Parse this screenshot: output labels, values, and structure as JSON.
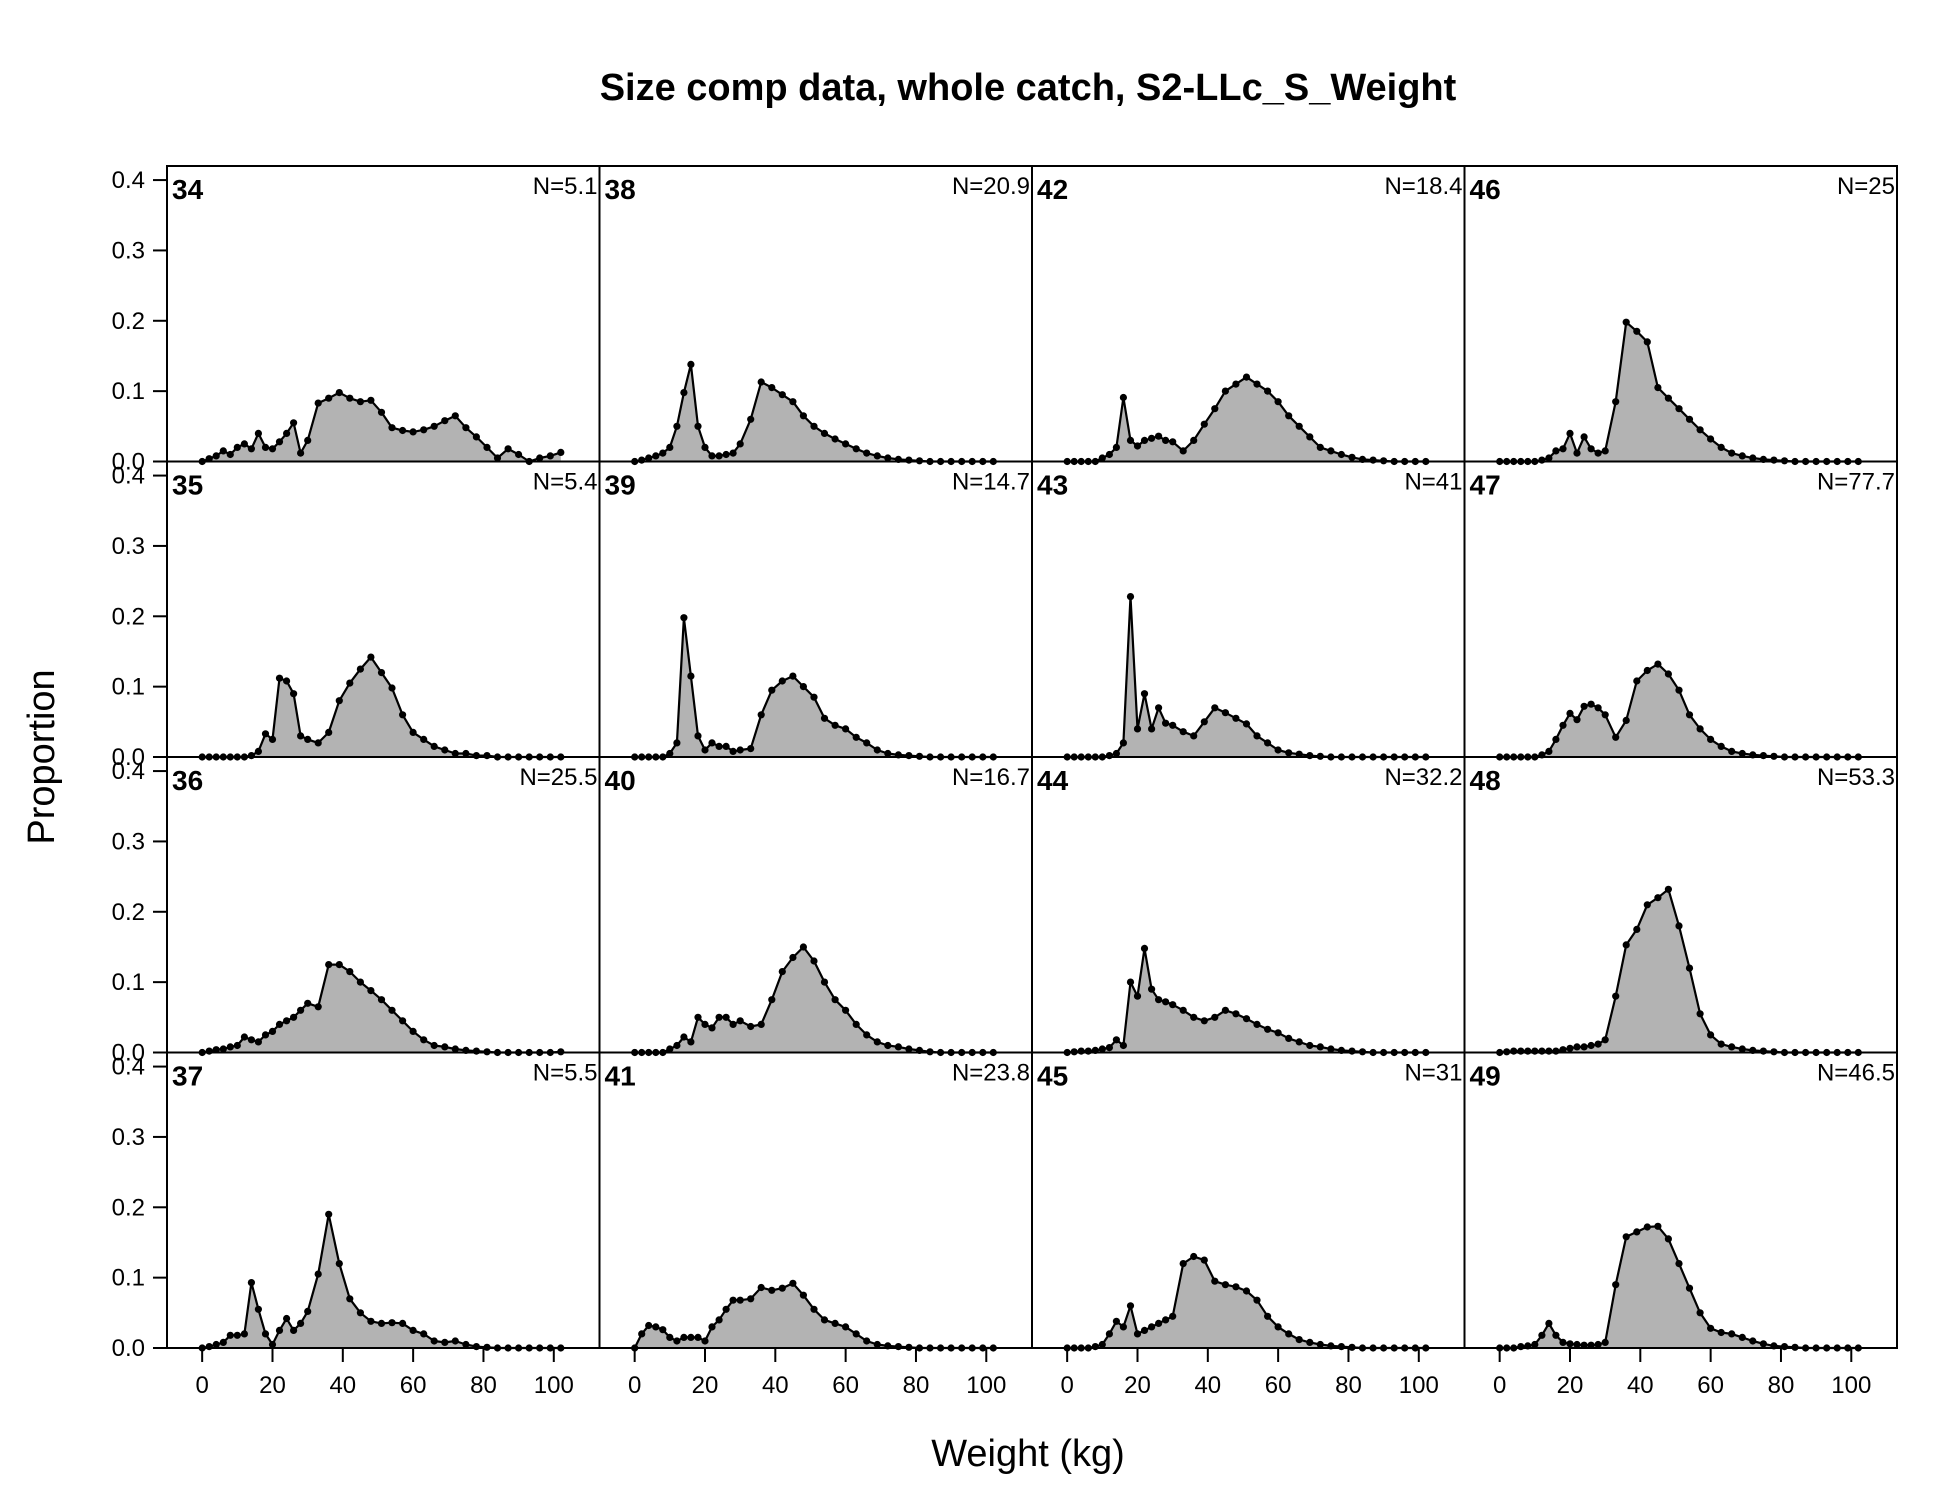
{
  "chart_data": {
    "type": "area",
    "title": "Size comp data, whole catch, S2-LLc_S_Weight",
    "xlabel": "Weight (kg)",
    "ylabel": "Proportion",
    "xlim": [
      -10,
      113
    ],
    "ylim": [
      0,
      0.42
    ],
    "x_ticks": [
      0,
      20,
      40,
      60,
      80,
      100
    ],
    "x_tick_labels": [
      "0",
      "20",
      "40",
      "60",
      "80",
      "100"
    ],
    "y_ticks": [
      0,
      0.1,
      0.2,
      0.3,
      0.4
    ],
    "y_tick_labels": [
      "0.0",
      "0.1",
      "0.2",
      "0.3",
      "0.4"
    ],
    "layout": {
      "columns": 4,
      "rows": 4,
      "order": "column-major"
    },
    "fill_color": "#b3b3b3",
    "line_color": "#000000",
    "x": [
      0,
      2,
      4,
      6,
      8,
      10,
      12,
      14,
      16,
      18,
      20,
      22,
      24,
      26,
      28,
      30,
      33,
      36,
      39,
      42,
      45,
      48,
      51,
      54,
      57,
      60,
      63,
      66,
      69,
      72,
      75,
      78,
      81,
      84,
      87,
      90,
      93,
      96,
      99,
      102
    ],
    "panels": [
      {
        "label": "34",
        "n": "N=5.1",
        "values": [
          0,
          0.004,
          0.008,
          0.015,
          0.01,
          0.02,
          0.025,
          0.018,
          0.04,
          0.02,
          0.018,
          0.028,
          0.04,
          0.055,
          0.012,
          0.03,
          0.083,
          0.09,
          0.098,
          0.09,
          0.085,
          0.087,
          0.07,
          0.048,
          0.044,
          0.042,
          0.045,
          0.05,
          0.058,
          0.065,
          0.048,
          0.035,
          0.02,
          0.005,
          0.018,
          0.01,
          0,
          0.005,
          0.008,
          0.013
        ]
      },
      {
        "label": "35",
        "n": "N=5.4",
        "values": [
          0,
          0,
          0,
          0,
          0,
          0,
          0,
          0.002,
          0.008,
          0.033,
          0.025,
          0.112,
          0.108,
          0.09,
          0.03,
          0.025,
          0.02,
          0.035,
          0.08,
          0.105,
          0.125,
          0.142,
          0.12,
          0.098,
          0.06,
          0.035,
          0.025,
          0.015,
          0.01,
          0.005,
          0.005,
          0.002,
          0.002,
          0,
          0,
          0,
          0,
          0,
          0,
          0
        ]
      },
      {
        "label": "36",
        "n": "N=25.5",
        "values": [
          0,
          0.002,
          0.004,
          0.005,
          0.008,
          0.01,
          0.022,
          0.018,
          0.015,
          0.025,
          0.03,
          0.04,
          0.045,
          0.05,
          0.06,
          0.07,
          0.065,
          0.125,
          0.125,
          0.115,
          0.1,
          0.088,
          0.075,
          0.06,
          0.045,
          0.03,
          0.018,
          0.01,
          0.008,
          0.005,
          0.003,
          0.002,
          0.001,
          0,
          0,
          0,
          0,
          0,
          0,
          0.001
        ]
      },
      {
        "label": "37",
        "n": "N=5.5",
        "values": [
          0,
          0.002,
          0.005,
          0.008,
          0.018,
          0.018,
          0.02,
          0.093,
          0.055,
          0.02,
          0.005,
          0.025,
          0.042,
          0.025,
          0.035,
          0.052,
          0.105,
          0.19,
          0.12,
          0.07,
          0.05,
          0.038,
          0.035,
          0.036,
          0.035,
          0.025,
          0.02,
          0.01,
          0.008,
          0.01,
          0.005,
          0.002,
          0.001,
          0,
          0,
          0,
          0,
          0,
          0,
          0
        ]
      },
      {
        "label": "38",
        "n": "N=20.9",
        "values": [
          0,
          0.002,
          0.005,
          0.008,
          0.012,
          0.02,
          0.05,
          0.098,
          0.138,
          0.05,
          0.02,
          0.008,
          0.008,
          0.01,
          0.012,
          0.025,
          0.06,
          0.113,
          0.105,
          0.095,
          0.085,
          0.065,
          0.05,
          0.04,
          0.032,
          0.025,
          0.018,
          0.012,
          0.008,
          0.005,
          0.003,
          0.002,
          0.001,
          0,
          0,
          0,
          0,
          0,
          0,
          0
        ]
      },
      {
        "label": "39",
        "n": "N=14.7",
        "values": [
          0,
          0,
          0,
          0,
          0,
          0.005,
          0.02,
          0.198,
          0.115,
          0.03,
          0.01,
          0.02,
          0.015,
          0.015,
          0.008,
          0.01,
          0.012,
          0.06,
          0.095,
          0.108,
          0.115,
          0.1,
          0.085,
          0.055,
          0.045,
          0.04,
          0.028,
          0.02,
          0.01,
          0.005,
          0.003,
          0.002,
          0.001,
          0,
          0,
          0,
          0,
          0,
          0,
          0
        ]
      },
      {
        "label": "40",
        "n": "N=16.7",
        "values": [
          0,
          0,
          0,
          0,
          0,
          0.005,
          0.01,
          0.022,
          0.015,
          0.05,
          0.04,
          0.035,
          0.05,
          0.05,
          0.04,
          0.045,
          0.037,
          0.04,
          0.075,
          0.115,
          0.135,
          0.15,
          0.13,
          0.1,
          0.075,
          0.06,
          0.04,
          0.025,
          0.015,
          0.01,
          0.008,
          0.005,
          0.003,
          0.001,
          0,
          0,
          0,
          0,
          0,
          0
        ]
      },
      {
        "label": "41",
        "n": "N=23.8",
        "values": [
          0,
          0.02,
          0.032,
          0.03,
          0.026,
          0.015,
          0.01,
          0.015,
          0.015,
          0.015,
          0.01,
          0.03,
          0.04,
          0.055,
          0.068,
          0.068,
          0.07,
          0.086,
          0.082,
          0.085,
          0.092,
          0.075,
          0.055,
          0.04,
          0.035,
          0.03,
          0.02,
          0.01,
          0.005,
          0.003,
          0.002,
          0.001,
          0,
          0,
          0,
          0,
          0,
          0,
          0,
          0
        ]
      },
      {
        "label": "42",
        "n": "N=18.4",
        "values": [
          0,
          0,
          0,
          0,
          0,
          0.005,
          0.01,
          0.02,
          0.091,
          0.03,
          0.022,
          0.03,
          0.033,
          0.036,
          0.03,
          0.028,
          0.015,
          0.03,
          0.053,
          0.075,
          0.1,
          0.11,
          0.12,
          0.11,
          0.1,
          0.085,
          0.065,
          0.05,
          0.035,
          0.02,
          0.015,
          0.01,
          0.006,
          0.003,
          0.002,
          0.001,
          0,
          0,
          0,
          0
        ]
      },
      {
        "label": "43",
        "n": "N=41",
        "values": [
          0,
          0,
          0,
          0,
          0,
          0,
          0.002,
          0.005,
          0.02,
          0.228,
          0.04,
          0.09,
          0.04,
          0.07,
          0.048,
          0.045,
          0.036,
          0.03,
          0.05,
          0.07,
          0.063,
          0.055,
          0.047,
          0.03,
          0.02,
          0.01,
          0.006,
          0.004,
          0.002,
          0.001,
          0,
          0,
          0,
          0,
          0,
          0,
          0,
          0,
          0,
          0
        ]
      },
      {
        "label": "44",
        "n": "N=32.2",
        "values": [
          0,
          0.001,
          0.002,
          0.002,
          0.003,
          0.005,
          0.007,
          0.018,
          0.01,
          0.1,
          0.08,
          0.148,
          0.09,
          0.075,
          0.072,
          0.068,
          0.06,
          0.05,
          0.045,
          0.05,
          0.06,
          0.055,
          0.048,
          0.04,
          0.033,
          0.028,
          0.02,
          0.015,
          0.01,
          0.008,
          0.005,
          0.003,
          0.002,
          0.001,
          0,
          0,
          0,
          0,
          0,
          0
        ]
      },
      {
        "label": "45",
        "n": "N=31",
        "values": [
          0,
          0,
          0,
          0,
          0.002,
          0.005,
          0.02,
          0.038,
          0.03,
          0.06,
          0.02,
          0.025,
          0.03,
          0.035,
          0.04,
          0.045,
          0.12,
          0.13,
          0.125,
          0.095,
          0.09,
          0.087,
          0.081,
          0.068,
          0.045,
          0.03,
          0.02,
          0.012,
          0.008,
          0.005,
          0.003,
          0.002,
          0.001,
          0,
          0,
          0,
          0,
          0,
          0,
          0
        ]
      },
      {
        "label": "46",
        "n": "N=25",
        "values": [
          0,
          0,
          0,
          0,
          0,
          0,
          0.002,
          0.005,
          0.015,
          0.018,
          0.04,
          0.012,
          0.035,
          0.018,
          0.012,
          0.015,
          0.085,
          0.198,
          0.185,
          0.17,
          0.105,
          0.09,
          0.075,
          0.06,
          0.045,
          0.032,
          0.02,
          0.012,
          0.008,
          0.005,
          0.003,
          0.002,
          0.001,
          0,
          0,
          0,
          0,
          0,
          0,
          0
        ]
      },
      {
        "label": "47",
        "n": "N=77.7",
        "values": [
          0,
          0,
          0,
          0,
          0,
          0,
          0.003,
          0.008,
          0.025,
          0.045,
          0.062,
          0.053,
          0.072,
          0.075,
          0.07,
          0.06,
          0.028,
          0.052,
          0.108,
          0.123,
          0.132,
          0.118,
          0.095,
          0.06,
          0.04,
          0.025,
          0.015,
          0.008,
          0.005,
          0.003,
          0.002,
          0.001,
          0,
          0,
          0,
          0,
          0,
          0,
          0,
          0
        ]
      },
      {
        "label": "48",
        "n": "N=53.3",
        "values": [
          0,
          0.001,
          0.002,
          0.002,
          0.002,
          0.002,
          0.002,
          0.002,
          0.002,
          0.004,
          0.006,
          0.008,
          0.008,
          0.01,
          0.012,
          0.018,
          0.08,
          0.153,
          0.175,
          0.21,
          0.22,
          0.232,
          0.18,
          0.12,
          0.055,
          0.025,
          0.012,
          0.008,
          0.005,
          0.003,
          0.002,
          0.001,
          0,
          0,
          0,
          0,
          0,
          0,
          0,
          0
        ]
      },
      {
        "label": "49",
        "n": "N=46.5",
        "values": [
          0,
          0,
          0,
          0.002,
          0.003,
          0.005,
          0.018,
          0.035,
          0.018,
          0.008,
          0.006,
          0.005,
          0.004,
          0.004,
          0.005,
          0.008,
          0.09,
          0.158,
          0.165,
          0.172,
          0.173,
          0.155,
          0.12,
          0.085,
          0.05,
          0.028,
          0.022,
          0.02,
          0.015,
          0.01,
          0.006,
          0.003,
          0.002,
          0.001,
          0,
          0,
          0,
          0,
          0,
          0
        ]
      }
    ]
  }
}
